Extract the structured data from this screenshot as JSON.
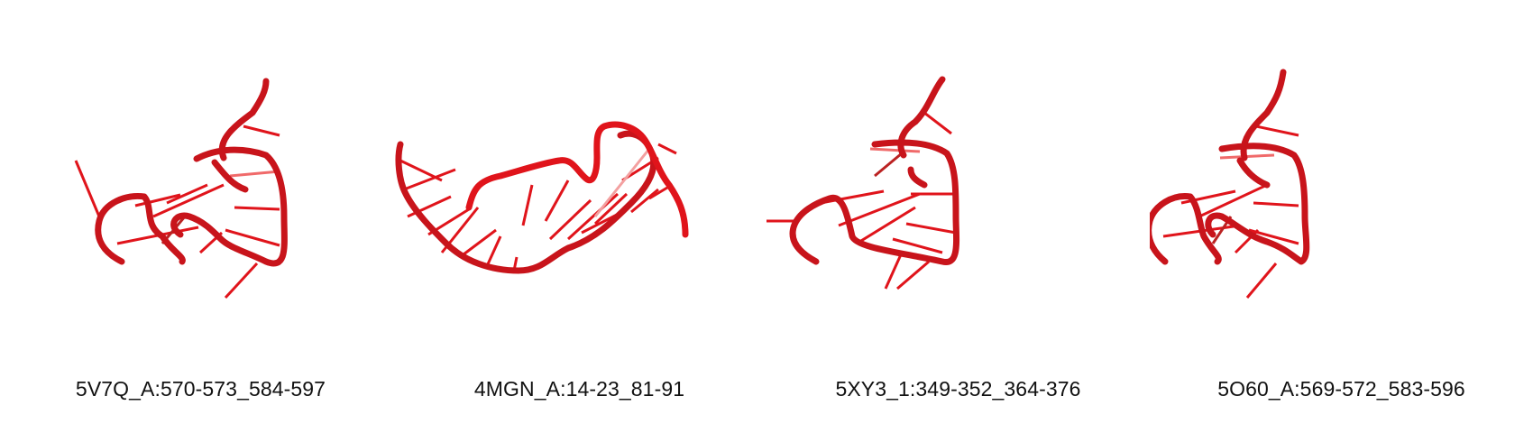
{
  "figure": {
    "panels": [
      {
        "label": "5V7Q_A:570-573_584-597",
        "color": "#e0141b"
      },
      {
        "label": "4MGN_A:14-23_81-91",
        "color": "#e0141b"
      },
      {
        "label": "5XY3_1:349-352_364-376",
        "color": "#e0141b"
      },
      {
        "label": "5O60_A:569-572_583-596",
        "color": "#e0141b"
      }
    ]
  }
}
